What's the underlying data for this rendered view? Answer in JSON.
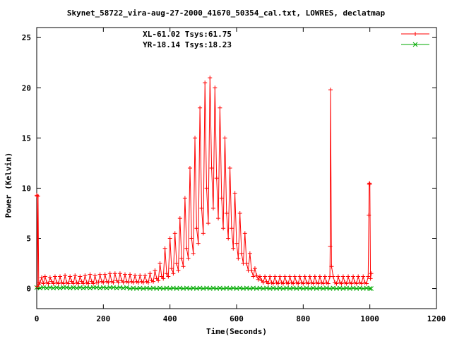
{
  "chart_data": {
    "type": "line",
    "title": "Skynet_58722_vira-aug-27-2000_41670_50354_cal.txt, LOWRES, declatmap",
    "xlabel": "Time(Seconds)",
    "ylabel": "Power (Kelvin)",
    "xlim": [
      0,
      1200
    ],
    "ylim": [
      -2,
      26
    ],
    "xticks": [
      0,
      200,
      400,
      600,
      800,
      1000,
      1200
    ],
    "yticks": [
      0,
      5,
      10,
      15,
      20,
      25
    ],
    "legend_position": "top-right",
    "series": [
      {
        "name": "XL-61.02 Tsys:61.75",
        "color": "#ff0000",
        "marker": "plus",
        "x": [
          0,
          1,
          2,
          4,
          6,
          10,
          15,
          20,
          25,
          30,
          35,
          40,
          45,
          50,
          55,
          60,
          65,
          70,
          75,
          80,
          85,
          90,
          95,
          100,
          105,
          110,
          115,
          120,
          125,
          130,
          135,
          140,
          145,
          150,
          155,
          160,
          165,
          170,
          175,
          180,
          185,
          190,
          195,
          200,
          205,
          210,
          215,
          220,
          225,
          230,
          235,
          240,
          245,
          250,
          255,
          260,
          265,
          270,
          275,
          280,
          285,
          290,
          295,
          300,
          305,
          310,
          315,
          320,
          325,
          330,
          335,
          340,
          345,
          350,
          355,
          360,
          365,
          370,
          375,
          380,
          385,
          390,
          395,
          400,
          405,
          410,
          415,
          420,
          425,
          430,
          435,
          440,
          445,
          450,
          455,
          460,
          465,
          470,
          475,
          480,
          485,
          490,
          495,
          500,
          505,
          510,
          515,
          520,
          525,
          530,
          535,
          540,
          545,
          550,
          555,
          560,
          565,
          570,
          575,
          580,
          585,
          590,
          595,
          600,
          605,
          610,
          615,
          620,
          625,
          630,
          635,
          640,
          645,
          650,
          655,
          660,
          665,
          670,
          675,
          680,
          685,
          690,
          695,
          700,
          705,
          710,
          715,
          720,
          725,
          730,
          735,
          740,
          745,
          750,
          755,
          760,
          765,
          770,
          775,
          780,
          785,
          790,
          795,
          800,
          805,
          810,
          815,
          820,
          825,
          830,
          835,
          840,
          845,
          850,
          855,
          860,
          865,
          870,
          875,
          880,
          881,
          882,
          885,
          890,
          895,
          900,
          905,
          910,
          915,
          920,
          925,
          930,
          935,
          940,
          945,
          950,
          955,
          960,
          965,
          970,
          975,
          980,
          985,
          990,
          995,
          997,
          998,
          999,
          1000,
          1002,
          1004
        ],
        "y": [
          9.3,
          9.2,
          0.2,
          9.2,
          0.4,
          0.6,
          1.1,
          0.5,
          1.2,
          0.6,
          0.5,
          1.1,
          0.7,
          0.5,
          1.2,
          0.6,
          0.5,
          1.2,
          0.6,
          0.5,
          1.3,
          0.6,
          0.5,
          1.2,
          0.7,
          0.5,
          1.3,
          0.6,
          0.5,
          1.2,
          0.7,
          0.5,
          1.3,
          0.6,
          0.5,
          1.4,
          0.7,
          0.5,
          1.3,
          0.6,
          0.6,
          1.4,
          0.7,
          0.6,
          1.4,
          0.7,
          0.6,
          1.5,
          0.7,
          0.6,
          1.5,
          0.8,
          0.6,
          1.5,
          0.8,
          0.6,
          1.4,
          0.7,
          0.6,
          1.4,
          0.7,
          0.6,
          1.3,
          0.7,
          0.6,
          1.3,
          0.7,
          0.6,
          1.3,
          0.7,
          0.6,
          1.5,
          0.8,
          0.7,
          1.8,
          1.0,
          0.8,
          2.5,
          1.2,
          1.0,
          4.0,
          1.5,
          1.2,
          5.0,
          2.0,
          1.5,
          5.5,
          2.5,
          1.8,
          7.0,
          3.0,
          2.2,
          9.0,
          4.0,
          3.0,
          12.0,
          5.0,
          3.5,
          15.0,
          6.0,
          4.5,
          18.0,
          8.0,
          5.5,
          20.5,
          10.0,
          6.5,
          21.0,
          12.0,
          8.0,
          20.0,
          11.0,
          7.0,
          18.0,
          9.0,
          6.0,
          15.0,
          7.5,
          5.0,
          12.0,
          6.0,
          4.0,
          9.5,
          4.5,
          3.0,
          7.5,
          3.5,
          2.5,
          5.5,
          2.5,
          1.8,
          3.5,
          1.8,
          1.2,
          2.0,
          1.3,
          0.9,
          1.2,
          0.8,
          0.6,
          1.2,
          0.7,
          0.5,
          1.2,
          0.6,
          0.5,
          1.2,
          0.6,
          0.5,
          1.2,
          0.6,
          0.5,
          1.2,
          0.6,
          0.5,
          1.2,
          0.6,
          0.5,
          1.2,
          0.6,
          0.5,
          1.2,
          0.6,
          0.5,
          1.2,
          0.6,
          0.5,
          1.2,
          0.6,
          0.5,
          1.2,
          0.6,
          0.5,
          1.2,
          0.6,
          0.5,
          1.2,
          0.6,
          0.5,
          1.2,
          4.2,
          19.8,
          2.2,
          1.2,
          0.6,
          0.5,
          1.2,
          0.6,
          0.5,
          1.2,
          0.6,
          0.5,
          1.2,
          0.6,
          0.5,
          1.2,
          0.6,
          0.5,
          1.2,
          0.6,
          0.5,
          1.2,
          0.6,
          0.5,
          1.2,
          7.3,
          10.4,
          10.5,
          10.4,
          1.0,
          1.5
        ]
      },
      {
        "name": "YR-18.14 Tsys:18.23",
        "color": "#00aa00",
        "marker": "cross",
        "x": [
          0,
          10,
          20,
          30,
          40,
          50,
          60,
          70,
          80,
          90,
          100,
          110,
          120,
          130,
          140,
          150,
          160,
          170,
          180,
          190,
          200,
          210,
          220,
          230,
          240,
          250,
          260,
          270,
          280,
          290,
          300,
          310,
          320,
          330,
          340,
          350,
          360,
          370,
          380,
          390,
          400,
          410,
          420,
          430,
          440,
          450,
          460,
          470,
          480,
          490,
          500,
          510,
          520,
          530,
          540,
          550,
          560,
          570,
          580,
          590,
          600,
          610,
          620,
          630,
          640,
          650,
          660,
          670,
          680,
          690,
          700,
          710,
          720,
          730,
          740,
          750,
          760,
          770,
          780,
          790,
          800,
          810,
          820,
          830,
          840,
          850,
          860,
          870,
          880,
          890,
          900,
          910,
          920,
          930,
          940,
          950,
          960,
          970,
          980,
          990,
          1000,
          1004
        ],
        "y": [
          0.1,
          0.05,
          0.1,
          0.05,
          0.1,
          0.05,
          0.1,
          0.05,
          0.1,
          0.1,
          0.05,
          0.1,
          0.05,
          0.1,
          0.05,
          0.1,
          0.05,
          0.1,
          0.1,
          0.05,
          0.1,
          0.05,
          0.1,
          0.1,
          0.05,
          0.1,
          0.05,
          0.1,
          0.0,
          0.05,
          0.0,
          0.05,
          0.0,
          0.05,
          0.0,
          0.05,
          0.0,
          0.05,
          0.0,
          0.05,
          0.0,
          0.05,
          0.0,
          0.05,
          0.0,
          0.05,
          0.0,
          0.05,
          0.0,
          0.05,
          0.0,
          0.05,
          0.0,
          0.05,
          0.0,
          0.05,
          0.0,
          0.05,
          0.0,
          0.05,
          0.0,
          0.05,
          0.0,
          0.05,
          0.0,
          0.05,
          0.0,
          0.05,
          0.0,
          0.05,
          0.0,
          0.05,
          0.0,
          0.05,
          0.0,
          0.05,
          0.0,
          0.05,
          0.0,
          0.05,
          0.0,
          0.05,
          0.0,
          0.05,
          0.0,
          0.05,
          0.0,
          0.05,
          0.0,
          0.05,
          0.0,
          0.05,
          0.0,
          0.05,
          0.0,
          0.05,
          0.0,
          0.05,
          0.0,
          0.05,
          0.0,
          0.0
        ]
      }
    ]
  }
}
